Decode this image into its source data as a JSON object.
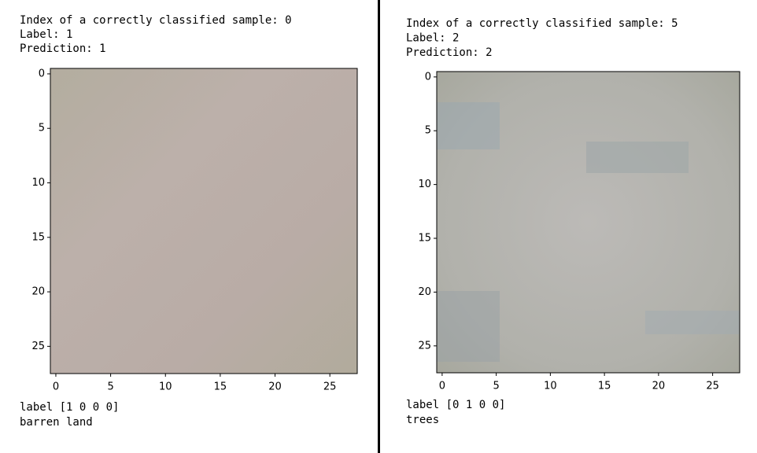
{
  "panels": [
    {
      "header": [
        "Index of a correctly classified sample: 0",
        "Label: 1",
        "Prediction: 1"
      ],
      "image": {
        "xlim": [
          -0.5,
          27.5
        ],
        "ylim": [
          27.5,
          -0.5
        ],
        "xticks": [
          0,
          5,
          10,
          15,
          20,
          25
        ],
        "yticks": [
          0,
          5,
          10,
          15,
          20,
          25
        ]
      },
      "footer": [
        "label [1 0 0 0]",
        "barren land"
      ]
    },
    {
      "header": [
        "Index of a correctly classified sample: 5",
        "Label: 2",
        "Prediction: 2"
      ],
      "image": {
        "xlim": [
          -0.5,
          27.5
        ],
        "ylim": [
          27.5,
          -0.5
        ],
        "xticks": [
          0,
          5,
          10,
          15,
          20,
          25
        ],
        "yticks": [
          0,
          5,
          10,
          15,
          20,
          25
        ]
      },
      "footer": [
        "label [0 1 0 0]",
        "trees"
      ]
    }
  ]
}
